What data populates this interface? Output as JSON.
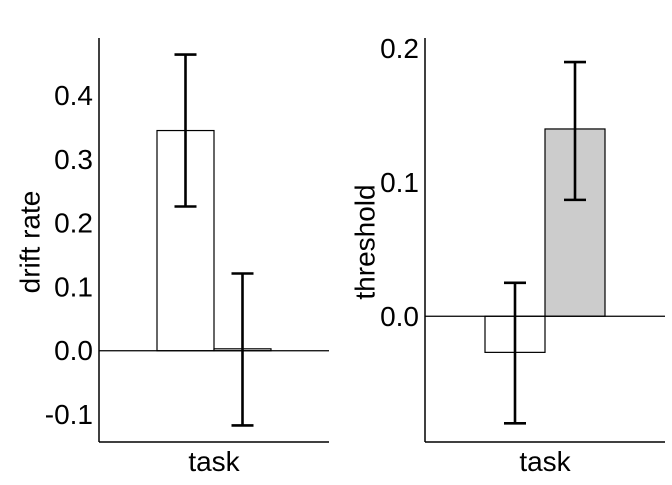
{
  "chart_data": [
    {
      "type": "bar",
      "xlabel": "task",
      "ylabel": "drift rate",
      "ylim": [
        -0.143,
        0.49
      ],
      "yticks": [
        -0.1,
        0.0,
        0.1,
        0.2,
        0.3,
        0.4
      ],
      "ytick_labels": [
        "-0.1",
        "0.0",
        "0.1",
        "0.2",
        "0.3",
        "0.4"
      ],
      "zero_line": true,
      "bars": [
        {
          "value": 0.345,
          "error_low": 0.226,
          "error_high": 0.464,
          "fill": "#ffffff"
        },
        {
          "value": 0.003,
          "error_low": -0.117,
          "error_high": 0.121,
          "fill": "#ffffff"
        }
      ]
    },
    {
      "type": "bar",
      "xlabel": "task",
      "ylabel": "threshold",
      "ylim": [
        -0.094,
        0.208
      ],
      "yticks": [
        0.0,
        0.1,
        0.2
      ],
      "ytick_labels": [
        "0.0",
        "0.1",
        "0.2"
      ],
      "zero_line": true,
      "bars": [
        {
          "value": -0.027,
          "error_low": -0.08,
          "error_high": 0.025,
          "fill": "#ffffff"
        },
        {
          "value": 0.14,
          "error_low": 0.087,
          "error_high": 0.19,
          "fill": "#cccccc"
        }
      ]
    }
  ]
}
